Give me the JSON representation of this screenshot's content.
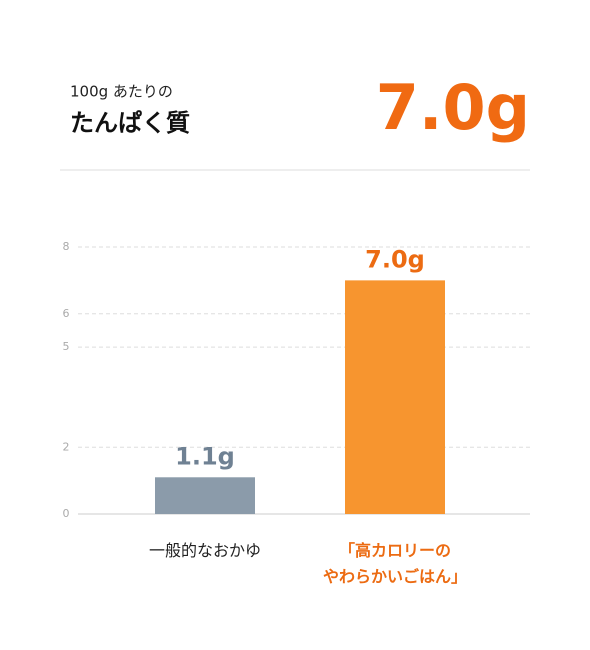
{
  "chart_data": {
    "type": "bar",
    "subtitle": "100g あたりの",
    "title": "たんぱく質",
    "headline_value": "7.0g",
    "categories": [
      "一般的なおかゆ",
      "「高カロリーの\nやわらかいごはん」"
    ],
    "values": [
      1.1,
      7.0
    ],
    "value_labels": [
      "1.1g",
      "7.0g"
    ],
    "colors": [
      "#8b9baa",
      "#f7952f"
    ],
    "label_colors": [
      "#6f8193",
      "#ec6b12"
    ],
    "ylim": [
      0,
      8
    ],
    "yticks": [
      0,
      2,
      5,
      6,
      8
    ],
    "grid": true
  }
}
